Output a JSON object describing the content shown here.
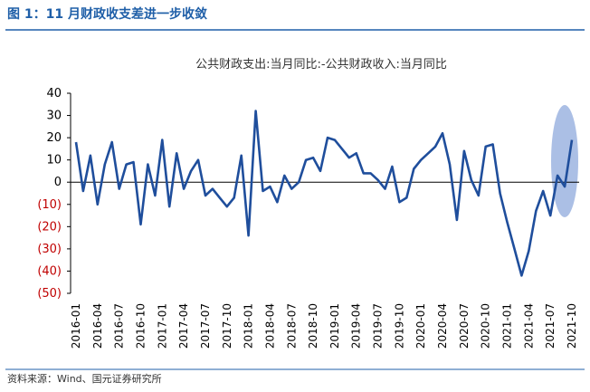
{
  "header": {
    "title": "图 1：11 月财政收支差进一步收敛"
  },
  "chart_data": {
    "type": "line",
    "title": "公共财政支出:当月同比:-公共财政收入:当月同比",
    "color": "#1f4e9c",
    "negative_tick_color": "#c00000",
    "categories": [
      "2016-01",
      null,
      null,
      "2016-04",
      null,
      null,
      "2016-07",
      null,
      null,
      "2016-10",
      null,
      null,
      "2017-01",
      null,
      null,
      "2017-04",
      null,
      null,
      "2017-07",
      null,
      null,
      "2017-10",
      null,
      null,
      "2018-01",
      null,
      null,
      "2018-04",
      null,
      null,
      "2018-07",
      null,
      null,
      "2018-10",
      null,
      null,
      "2019-01",
      null,
      null,
      "2019-04",
      null,
      null,
      "2019-07",
      null,
      null,
      "2019-10",
      null,
      null,
      "2020-01",
      null,
      null,
      "2020-04",
      null,
      null,
      "2020-07",
      null,
      null,
      "2020-10",
      null,
      null,
      "2021-01",
      null,
      null,
      "2021-04",
      null,
      null,
      "2021-07",
      null,
      null,
      "2021-10"
    ],
    "values": [
      18,
      -4,
      12,
      -10,
      8,
      18,
      -3,
      8,
      9,
      -19,
      8,
      -6,
      19,
      -11,
      13,
      -3,
      5,
      10,
      -6,
      -3,
      -7,
      -11,
      -7,
      12,
      -24,
      32,
      -4,
      -2,
      -9,
      3,
      -3,
      0,
      10,
      11,
      5,
      20,
      19,
      15,
      11,
      13,
      4,
      4,
      1,
      -3,
      7,
      -9,
      -7,
      6,
      10,
      13,
      16,
      22,
      8,
      -17,
      14,
      1,
      -6,
      16,
      17,
      -5,
      -18,
      -30,
      -42,
      -31,
      -13,
      -4,
      -15,
      3,
      -2,
      19
    ],
    "ylim": [
      -50,
      40
    ],
    "yticks": [
      {
        "value": -50,
        "label": "(50)"
      },
      {
        "value": -40,
        "label": "(40)"
      },
      {
        "value": -30,
        "label": "(30)"
      },
      {
        "value": -20,
        "label": "(20)"
      },
      {
        "value": -10,
        "label": "(10)"
      },
      0,
      10,
      20,
      30,
      40
    ],
    "grid": false
  },
  "footer": {
    "source": "资料来源：Wind、国元证券研究所"
  }
}
